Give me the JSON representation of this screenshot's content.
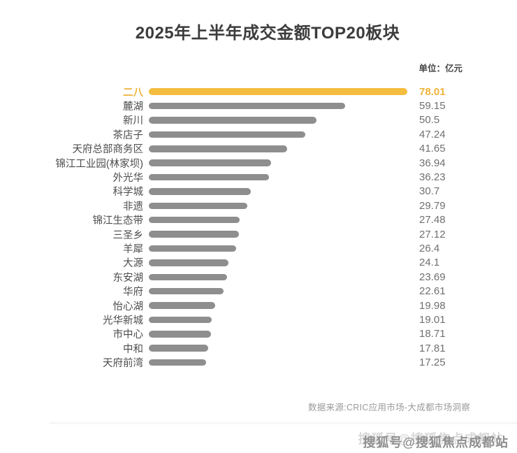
{
  "page": {
    "title": "2025年上半年成交金额TOP20板块",
    "unit_label": "单位：亿元",
    "source": "数据来源:CRIC应用市场-大成都市场洞察",
    "watermark": "搜狐号@搜狐焦点成都站"
  },
  "colors": {
    "highlight_bar": "#f4bd3f",
    "highlight_text": "#edb33a",
    "bar": "#8e8e8e",
    "label_text": "#4d4d4d",
    "value_text": "#707070",
    "title_text": "#3c3c3c",
    "source_text": "#9a9a9a"
  },
  "chart_data": {
    "type": "bar",
    "orientation": "horizontal",
    "title": "2025年上半年成交金额TOP20板块",
    "unit": "亿元",
    "xlabel": "",
    "ylabel": "",
    "xlim": [
      0,
      78.01
    ],
    "grid": false,
    "legend": false,
    "highlight_index": 0,
    "max_value": 78.01,
    "categories": [
      "二八",
      "麓湖",
      "新川",
      "茶店子",
      "天府总部商务区",
      "锦江工业园(林家坝)",
      "外光华",
      "科学城",
      "非遗",
      "锦江生态带",
      "三圣乡",
      "羊犀",
      "大源",
      "东安湖",
      "华府",
      "怡心湖",
      "光华新城",
      "市中心",
      "中和",
      "天府前湾"
    ],
    "values": [
      78.01,
      59.15,
      50.5,
      47.24,
      41.65,
      36.94,
      36.23,
      30.7,
      29.79,
      27.48,
      27.12,
      26.4,
      24.1,
      23.69,
      22.61,
      19.98,
      19.01,
      18.71,
      17.81,
      17.25
    ],
    "value_labels": [
      "78.01",
      "59.15",
      "50.5",
      "47.24",
      "41.65",
      "36.94",
      "36.23",
      "30.7",
      "29.79",
      "27.48",
      "27.12",
      "26.4",
      "24.1",
      "23.69",
      "22.61",
      "19.98",
      "19.01",
      "18.71",
      "17.81",
      "17.25"
    ]
  }
}
